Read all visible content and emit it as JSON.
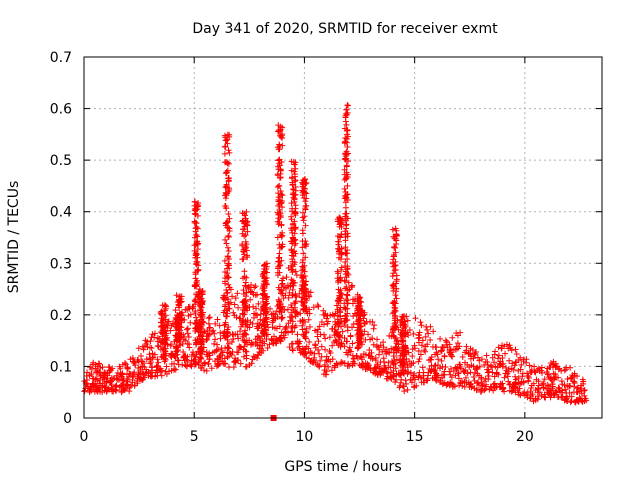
{
  "chart_data": {
    "type": "scatter",
    "title": "Day 341 of 2020, SRMTID for receiver exmt",
    "xlabel": "GPS time / hours",
    "ylabel": "SRMTID / TECUs",
    "xlim": [
      0,
      23.5
    ],
    "ylim": [
      0,
      0.7
    ],
    "xticks": [
      0,
      5,
      10,
      15,
      20
    ],
    "yticks": [
      0,
      0.1,
      0.2,
      0.3,
      0.4,
      0.5,
      0.6,
      0.7
    ],
    "xtick_labels": [
      "0",
      "5",
      "10",
      "15",
      "20"
    ],
    "ytick_labels": [
      "0",
      "0.1",
      "0.2",
      "0.3",
      "0.4",
      "0.5",
      "0.6",
      "0.7"
    ],
    "grid": true,
    "marker": "plus",
    "marker_color": "#ff0000",
    "baseline_marker": {
      "x": 8.6,
      "y": 0.0
    },
    "envelope": {
      "x": [
        0,
        0.5,
        1,
        1.5,
        2,
        2.5,
        3,
        3.5,
        4,
        4.5,
        5,
        5.5,
        6,
        6.5,
        7,
        7.5,
        8,
        8.5,
        9,
        9.5,
        10,
        10.5,
        11,
        11.5,
        12,
        12.5,
        13,
        13.5,
        14,
        14.5,
        15,
        15.5,
        16,
        16.5,
        17,
        17.5,
        18,
        18.5,
        19,
        19.5,
        20,
        20.5,
        21,
        21.5,
        22,
        22.5,
        22.8
      ],
      "low": [
        0.05,
        0.05,
        0.05,
        0.05,
        0.05,
        0.07,
        0.08,
        0.08,
        0.09,
        0.1,
        0.1,
        0.09,
        0.1,
        0.1,
        0.09,
        0.1,
        0.12,
        0.14,
        0.15,
        0.13,
        0.12,
        0.1,
        0.08,
        0.1,
        0.1,
        0.1,
        0.09,
        0.08,
        0.07,
        0.05,
        0.06,
        0.07,
        0.07,
        0.06,
        0.06,
        0.06,
        0.05,
        0.05,
        0.05,
        0.05,
        0.04,
        0.03,
        0.04,
        0.04,
        0.03,
        0.03,
        0.03
      ],
      "high": [
        0.1,
        0.11,
        0.1,
        0.1,
        0.11,
        0.14,
        0.16,
        0.18,
        0.2,
        0.21,
        0.23,
        0.2,
        0.2,
        0.26,
        0.24,
        0.28,
        0.25,
        0.22,
        0.28,
        0.3,
        0.3,
        0.26,
        0.2,
        0.22,
        0.3,
        0.22,
        0.2,
        0.16,
        0.18,
        0.2,
        0.2,
        0.19,
        0.16,
        0.15,
        0.17,
        0.14,
        0.13,
        0.12,
        0.15,
        0.14,
        0.12,
        0.1,
        0.1,
        0.12,
        0.1,
        0.08,
        0.07
      ]
    },
    "spikes": [
      {
        "x": 5.1,
        "peak": 0.42,
        "width": 0.18
      },
      {
        "x": 5.3,
        "peak": 0.25,
        "width": 0.2
      },
      {
        "x": 6.5,
        "peak": 0.55,
        "width": 0.22
      },
      {
        "x": 7.3,
        "peak": 0.4,
        "width": 0.25
      },
      {
        "x": 8.2,
        "peak": 0.3,
        "width": 0.2
      },
      {
        "x": 8.9,
        "peak": 0.57,
        "width": 0.22
      },
      {
        "x": 9.5,
        "peak": 0.5,
        "width": 0.22
      },
      {
        "x": 10.0,
        "peak": 0.47,
        "width": 0.2
      },
      {
        "x": 11.6,
        "peak": 0.39,
        "width": 0.22
      },
      {
        "x": 11.9,
        "peak": 0.61,
        "width": 0.16
      },
      {
        "x": 12.5,
        "peak": 0.24,
        "width": 0.2
      },
      {
        "x": 14.1,
        "peak": 0.37,
        "width": 0.2
      },
      {
        "x": 14.5,
        "peak": 0.2,
        "width": 0.25
      },
      {
        "x": 3.6,
        "peak": 0.22,
        "width": 0.25
      },
      {
        "x": 4.3,
        "peak": 0.24,
        "width": 0.3
      }
    ]
  }
}
